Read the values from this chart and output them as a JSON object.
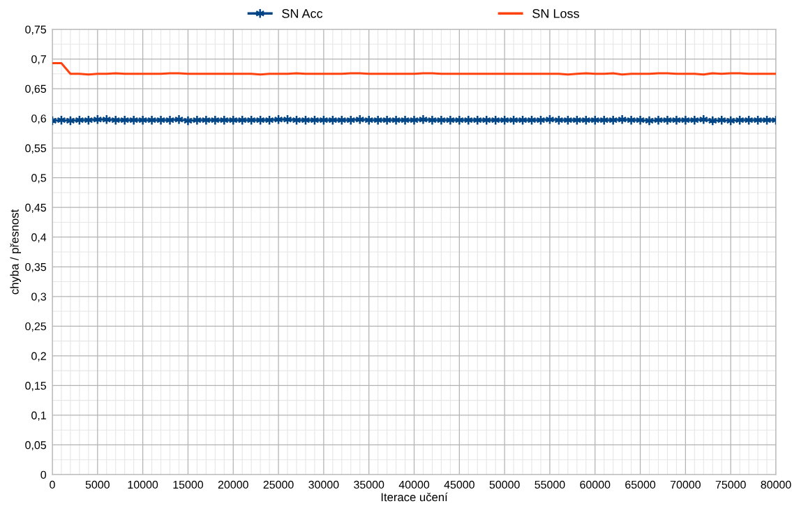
{
  "chart_data": {
    "type": "line",
    "xlabel": "Iterace učení",
    "ylabel": "chyba / přesnost",
    "x": [
      0,
      1000,
      2000,
      3000,
      4000,
      5000,
      6000,
      7000,
      8000,
      9000,
      10000,
      11000,
      12000,
      13000,
      14000,
      15000,
      16000,
      17000,
      18000,
      19000,
      20000,
      21000,
      22000,
      23000,
      24000,
      25000,
      26000,
      27000,
      28000,
      29000,
      30000,
      31000,
      32000,
      33000,
      34000,
      35000,
      36000,
      37000,
      38000,
      39000,
      40000,
      41000,
      42000,
      43000,
      44000,
      45000,
      46000,
      47000,
      48000,
      49000,
      50000,
      51000,
      52000,
      53000,
      54000,
      55000,
      56000,
      57000,
      58000,
      59000,
      60000,
      61000,
      62000,
      63000,
      64000,
      65000,
      66000,
      67000,
      68000,
      69000,
      70000,
      71000,
      72000,
      73000,
      74000,
      75000,
      76000,
      77000,
      78000,
      79000,
      80000
    ],
    "series": [
      {
        "name": "SN Acc",
        "color": "#004586",
        "marker": "cross",
        "values": [
          0.596,
          0.597,
          0.596,
          0.597,
          0.597,
          0.598,
          0.598,
          0.597,
          0.597,
          0.597,
          0.597,
          0.597,
          0.597,
          0.597,
          0.598,
          0.596,
          0.597,
          0.597,
          0.597,
          0.597,
          0.597,
          0.597,
          0.597,
          0.597,
          0.597,
          0.598,
          0.598,
          0.597,
          0.597,
          0.597,
          0.597,
          0.597,
          0.597,
          0.597,
          0.598,
          0.597,
          0.597,
          0.597,
          0.597,
          0.597,
          0.597,
          0.598,
          0.597,
          0.597,
          0.597,
          0.597,
          0.597,
          0.597,
          0.597,
          0.597,
          0.597,
          0.597,
          0.597,
          0.597,
          0.597,
          0.598,
          0.597,
          0.597,
          0.597,
          0.597,
          0.597,
          0.597,
          0.597,
          0.598,
          0.597,
          0.597,
          0.596,
          0.597,
          0.597,
          0.597,
          0.597,
          0.597,
          0.598,
          0.596,
          0.597,
          0.596,
          0.597,
          0.597,
          0.597,
          0.597,
          0.597
        ]
      },
      {
        "name": "SN Loss",
        "color": "#ff420e",
        "marker": "none",
        "values": [
          0.693,
          0.693,
          0.675,
          0.675,
          0.674,
          0.675,
          0.675,
          0.676,
          0.675,
          0.675,
          0.675,
          0.675,
          0.675,
          0.676,
          0.676,
          0.675,
          0.675,
          0.675,
          0.675,
          0.675,
          0.675,
          0.675,
          0.675,
          0.674,
          0.675,
          0.675,
          0.675,
          0.676,
          0.675,
          0.675,
          0.675,
          0.675,
          0.675,
          0.676,
          0.676,
          0.675,
          0.675,
          0.675,
          0.675,
          0.675,
          0.675,
          0.676,
          0.676,
          0.675,
          0.675,
          0.675,
          0.675,
          0.675,
          0.675,
          0.675,
          0.675,
          0.675,
          0.675,
          0.675,
          0.675,
          0.675,
          0.675,
          0.674,
          0.675,
          0.676,
          0.675,
          0.675,
          0.676,
          0.674,
          0.675,
          0.675,
          0.675,
          0.676,
          0.676,
          0.675,
          0.675,
          0.675,
          0.674,
          0.676,
          0.675,
          0.676,
          0.676,
          0.675,
          0.675,
          0.675,
          0.675
        ]
      }
    ],
    "xlim": [
      0,
      80000
    ],
    "xticks": [
      0,
      5000,
      10000,
      15000,
      20000,
      25000,
      30000,
      35000,
      40000,
      45000,
      50000,
      55000,
      60000,
      65000,
      70000,
      75000,
      80000
    ],
    "ylim": [
      0,
      0.75
    ],
    "yticks": [
      0,
      {
        "value": 0.05,
        "label": "0,05"
      },
      {
        "value": 0.1,
        "label": "0,1"
      },
      {
        "value": 0.15,
        "label": "0,15"
      },
      {
        "value": 0.2,
        "label": "0,2"
      },
      {
        "value": 0.25,
        "label": "0,25"
      },
      {
        "value": 0.3,
        "label": "0,3"
      },
      {
        "value": 0.35,
        "label": "0,35"
      },
      {
        "value": 0.4,
        "label": "0,4"
      },
      {
        "value": 0.45,
        "label": "0,45"
      },
      {
        "value": 0.5,
        "label": "0,5"
      },
      {
        "value": 0.55,
        "label": "0,55"
      },
      {
        "value": 0.6,
        "label": "0,6"
      },
      {
        "value": 0.65,
        "label": "0,65"
      },
      {
        "value": 0.7,
        "label": "0,7"
      },
      {
        "value": 0.75,
        "label": "0,75"
      }
    ],
    "grid": true,
    "legend": "top",
    "line_style": "solid"
  }
}
